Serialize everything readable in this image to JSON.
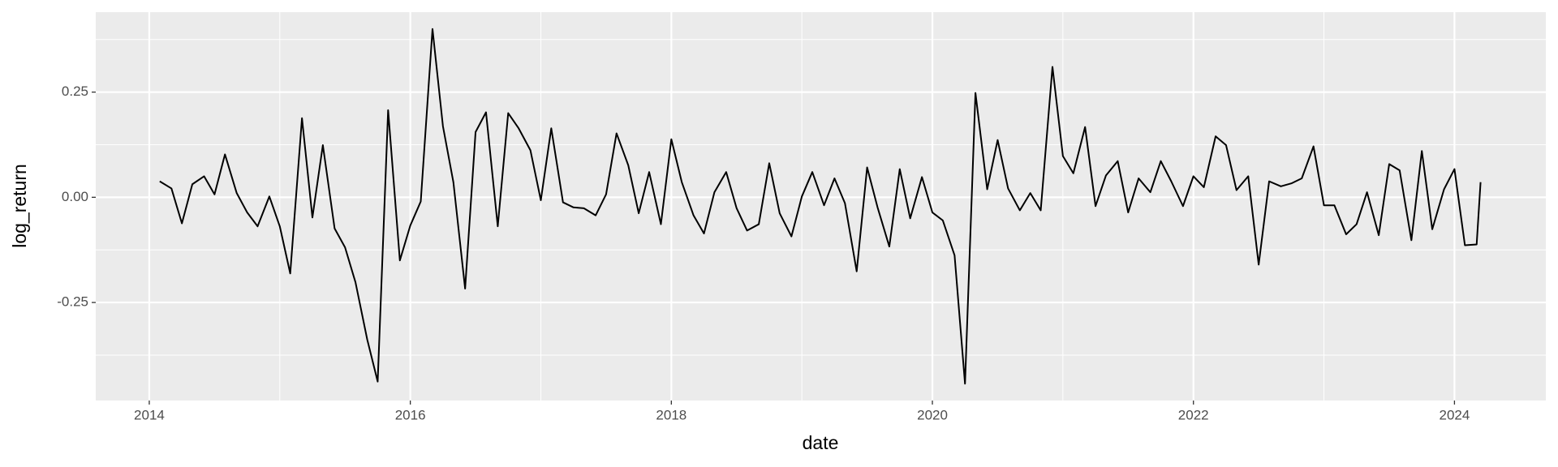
{
  "chart_data": {
    "type": "line",
    "x_label": "date",
    "y_label": "log_return",
    "x": [
      2014.08,
      2014.17,
      2014.25,
      2014.33,
      2014.42,
      2014.5,
      2014.58,
      2014.67,
      2014.75,
      2014.83,
      2014.92,
      2015.0,
      2015.08,
      2015.17,
      2015.25,
      2015.33,
      2015.42,
      2015.5,
      2015.58,
      2015.67,
      2015.75,
      2015.83,
      2015.92,
      2016.0,
      2016.08,
      2016.17,
      2016.25,
      2016.33,
      2016.42,
      2016.5,
      2016.58,
      2016.67,
      2016.75,
      2016.83,
      2016.92,
      2017.0,
      2017.08,
      2017.17,
      2017.25,
      2017.33,
      2017.42,
      2017.5,
      2017.58,
      2017.67,
      2017.75,
      2017.83,
      2017.92,
      2018.0,
      2018.08,
      2018.17,
      2018.25,
      2018.33,
      2018.42,
      2018.5,
      2018.58,
      2018.67,
      2018.75,
      2018.83,
      2018.92,
      2019.0,
      2019.08,
      2019.17,
      2019.25,
      2019.33,
      2019.42,
      2019.5,
      2019.58,
      2019.67,
      2019.75,
      2019.83,
      2019.92,
      2020.0,
      2020.08,
      2020.17,
      2020.25,
      2020.33,
      2020.42,
      2020.5,
      2020.58,
      2020.67,
      2020.75,
      2020.83,
      2020.92,
      2021.0,
      2021.08,
      2021.17,
      2021.25,
      2021.33,
      2021.42,
      2021.5,
      2021.58,
      2021.67,
      2021.75,
      2021.83,
      2021.92,
      2022.0,
      2022.08,
      2022.17,
      2022.25,
      2022.33,
      2022.42,
      2022.5,
      2022.58,
      2022.67,
      2022.75,
      2022.83,
      2022.92,
      2023.0,
      2023.08,
      2023.17,
      2023.25,
      2023.33,
      2023.42,
      2023.5,
      2023.58,
      2023.67,
      2023.75,
      2023.83,
      2023.92,
      2024.0,
      2024.08,
      2024.17,
      2024.2
    ],
    "values": [
      0.038,
      0.021,
      -0.062,
      0.031,
      0.05,
      0.007,
      0.102,
      0.01,
      -0.036,
      -0.069,
      0.002,
      -0.069,
      -0.181,
      0.188,
      -0.048,
      0.124,
      -0.074,
      -0.119,
      -0.202,
      -0.338,
      -0.438,
      0.207,
      -0.15,
      -0.067,
      -0.01,
      0.4,
      0.169,
      0.036,
      -0.217,
      0.155,
      0.202,
      -0.069,
      0.2,
      0.164,
      0.112,
      -0.007,
      0.164,
      -0.012,
      -0.024,
      -0.026,
      -0.043,
      0.007,
      0.152,
      0.076,
      -0.038,
      0.06,
      -0.064,
      0.138,
      0.036,
      -0.043,
      -0.086,
      0.012,
      0.06,
      -0.026,
      -0.079,
      -0.064,
      0.081,
      -0.038,
      -0.093,
      0.002,
      0.06,
      -0.019,
      0.045,
      -0.014,
      -0.176,
      0.071,
      -0.024,
      -0.117,
      0.067,
      -0.05,
      0.048,
      -0.036,
      -0.055,
      -0.138,
      -0.443,
      0.248,
      0.019,
      0.136,
      0.021,
      -0.031,
      0.01,
      -0.031,
      0.31,
      0.098,
      0.057,
      0.167,
      -0.021,
      0.052,
      0.086,
      -0.036,
      0.045,
      0.012,
      0.086,
      0.038,
      -0.021,
      0.05,
      0.024,
      0.145,
      0.124,
      0.017,
      0.05,
      -0.16,
      0.038,
      0.026,
      0.033,
      0.045,
      0.121,
      -0.019,
      -0.019,
      -0.088,
      -0.064,
      0.012,
      -0.09,
      0.079,
      0.064,
      -0.102,
      0.11,
      -0.076,
      0.019,
      0.067,
      -0.114,
      -0.112,
      0.036
    ],
    "color": "#000000",
    "xlim": [
      2013.59,
      2024.7
    ],
    "xticks": [
      2014,
      2016,
      2018,
      2020,
      2022,
      2024
    ],
    "ylim": [
      -0.483,
      0.44
    ],
    "yticks": [
      -0.25,
      {
        "value": 0,
        "label": "0.00"
      },
      0.25
    ],
    "grid": true
  }
}
